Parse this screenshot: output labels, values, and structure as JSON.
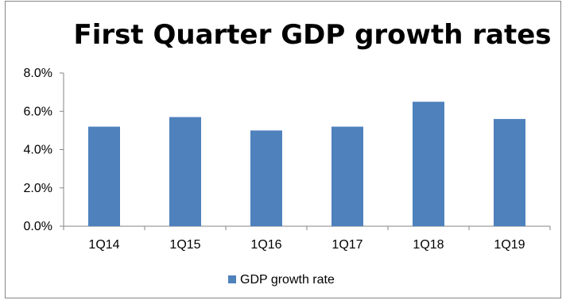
{
  "chart_data": {
    "type": "bar",
    "title": "First Quarter GDP growth rates",
    "xlabel": "",
    "ylabel": "",
    "categories": [
      "1Q14",
      "1Q15",
      "1Q16",
      "1Q17",
      "1Q18",
      "1Q19"
    ],
    "series": [
      {
        "name": "GDP growth rate",
        "values": [
          5.2,
          5.7,
          5.0,
          5.2,
          6.5,
          5.6
        ],
        "color": "#4f81bd"
      }
    ],
    "ylim": [
      0,
      8
    ],
    "yticks": [
      0,
      2,
      4,
      6,
      8
    ],
    "ytick_labels": [
      "0.0%",
      "2.0%",
      "4.0%",
      "6.0%",
      "8.0%"
    ],
    "grid": false,
    "legend_position": "bottom"
  }
}
